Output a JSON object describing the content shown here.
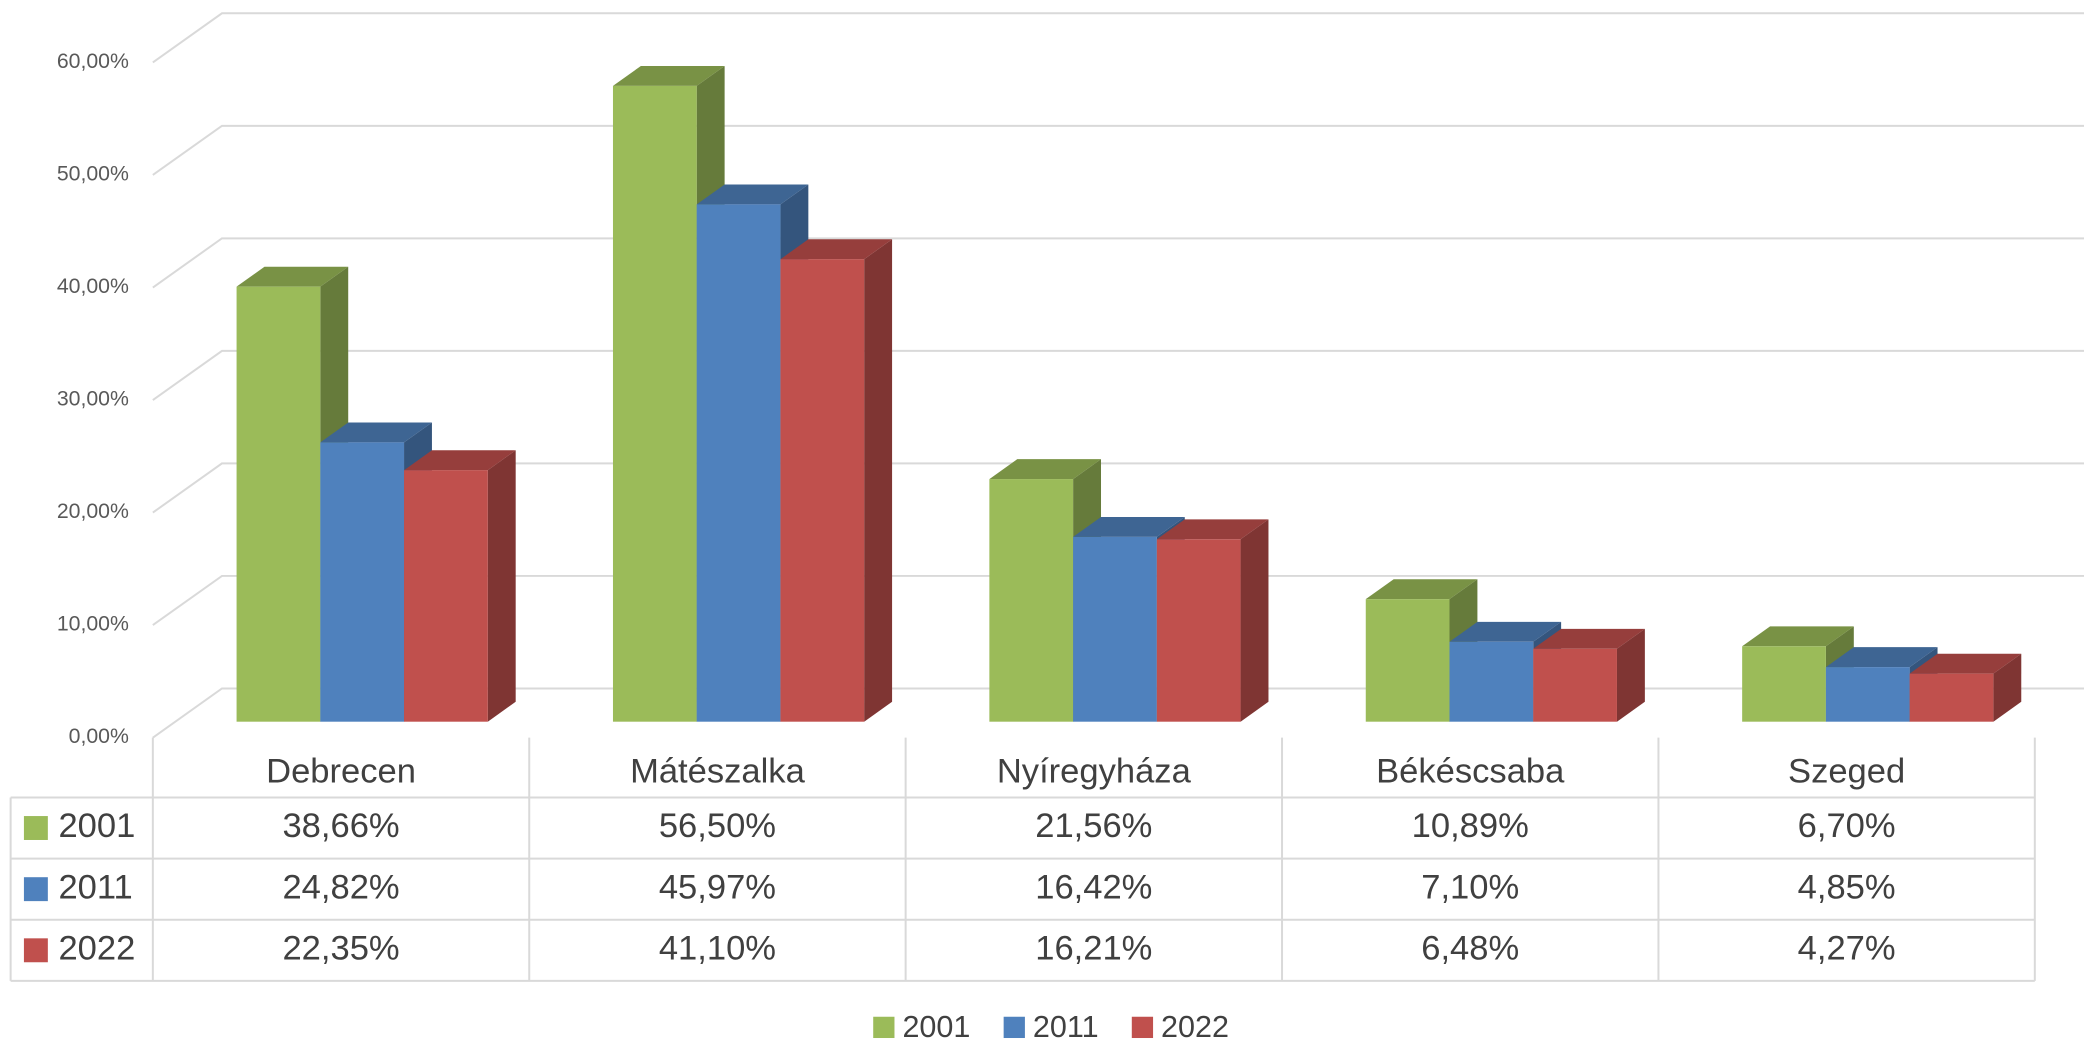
{
  "chart_data": {
    "type": "bar3d",
    "categories": [
      "Debrecen",
      "Mátészalka",
      "Nyíregyháza",
      "Békéscsaba",
      "Szeged"
    ],
    "series": [
      {
        "name": "2001",
        "color": "#9bbb59",
        "values": [
          38.66,
          56.5,
          21.56,
          10.89,
          6.7
        ],
        "value_labels": [
          "38,66%",
          "56,50%",
          "21,56%",
          "10,89%",
          "6,70%"
        ]
      },
      {
        "name": "2011",
        "color": "#4f81bd",
        "values": [
          24.82,
          45.97,
          16.42,
          7.1,
          4.85
        ],
        "value_labels": [
          "24,82%",
          "45,97%",
          "16,42%",
          "7,10%",
          "4,85%"
        ]
      },
      {
        "name": "2022",
        "color": "#c0504d",
        "values": [
          22.35,
          41.1,
          16.21,
          6.48,
          4.27
        ],
        "value_labels": [
          "22,35%",
          "41,10%",
          "16,21%",
          "6,48%",
          "4,27%"
        ]
      }
    ],
    "ylim": [
      0,
      60
    ],
    "yticks": [
      {
        "value": 0,
        "label": "0,00%"
      },
      {
        "value": 10,
        "label": "10,00%"
      },
      {
        "value": 20,
        "label": "20,00%"
      },
      {
        "value": 30,
        "label": "30,00%"
      },
      {
        "value": 40,
        "label": "40,00%"
      },
      {
        "value": 50,
        "label": "50,00%"
      },
      {
        "value": 60,
        "label": "60,00%"
      }
    ],
    "grid": true,
    "legend": "bottom"
  }
}
